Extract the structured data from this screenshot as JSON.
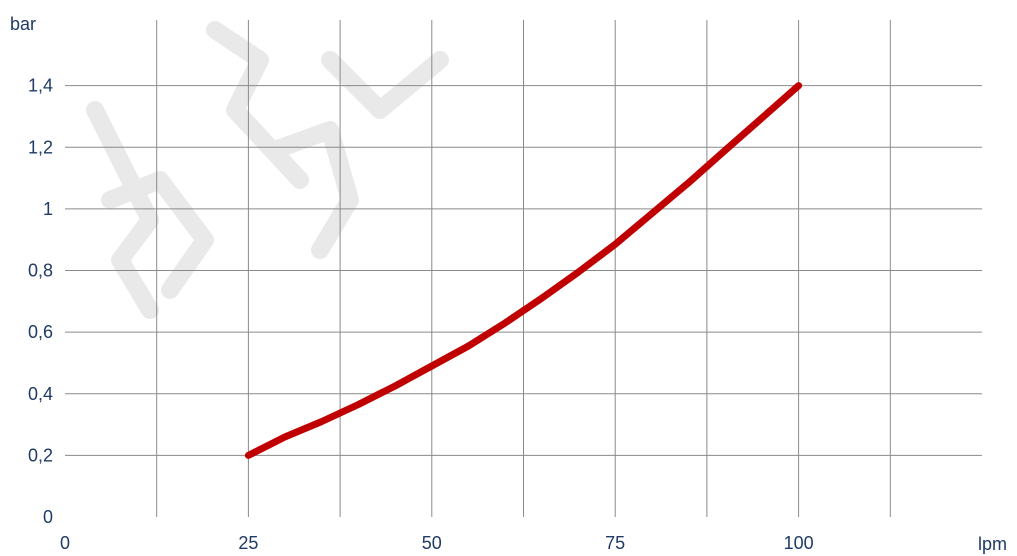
{
  "chart_data": {
    "type": "line",
    "xlabel": "lpm",
    "ylabel": "bar",
    "xlim": [
      0,
      125
    ],
    "ylim": [
      0,
      1.6
    ],
    "x_ticks": [
      {
        "value": 0,
        "label": "0"
      },
      {
        "value": 25,
        "label": "25"
      },
      {
        "value": 50,
        "label": "50"
      },
      {
        "value": 75,
        "label": "75"
      },
      {
        "value": 100,
        "label": "100"
      }
    ],
    "x_grid": [
      12.5,
      25,
      37.5,
      50,
      62.5,
      75,
      87.5,
      100,
      112.5
    ],
    "y_ticks": [
      {
        "value": 0,
        "label": "0"
      },
      {
        "value": 0.2,
        "label": "0,2"
      },
      {
        "value": 0.4,
        "label": "0,4"
      },
      {
        "value": 0.6,
        "label": "0,6"
      },
      {
        "value": 0.8,
        "label": "0,8"
      },
      {
        "value": 1.0,
        "label": "1"
      },
      {
        "value": 1.2,
        "label": "1,2"
      },
      {
        "value": 1.4,
        "label": "1,4"
      }
    ],
    "y_grid": [
      0.2,
      0.4,
      0.6,
      0.8,
      1.0,
      1.2,
      1.4
    ],
    "grid": true,
    "series": [
      {
        "color": "#c00000",
        "x": [
          25,
          30,
          35,
          40,
          45,
          50,
          55,
          60,
          65,
          70,
          75,
          80,
          85,
          90,
          95,
          100
        ],
        "y": [
          0.2,
          0.26,
          0.31,
          0.365,
          0.425,
          0.49,
          0.555,
          0.63,
          0.71,
          0.795,
          0.885,
          0.985,
          1.085,
          1.19,
          1.295,
          1.4
        ]
      }
    ]
  }
}
